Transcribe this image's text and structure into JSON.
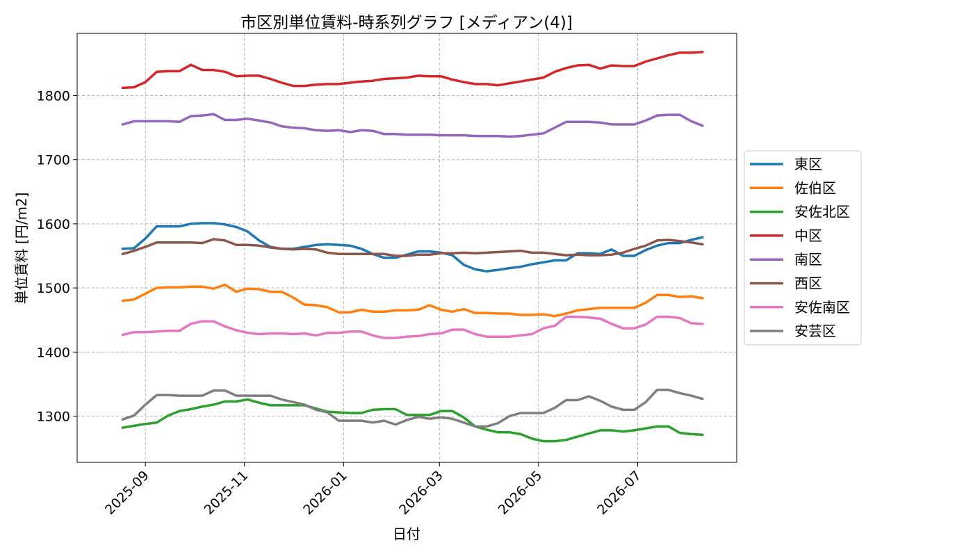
{
  "chart_data": {
    "type": "line",
    "title": "市区別単位賃料-時系列グラフ [メディアン(4)]",
    "xlabel": "日付",
    "ylabel": "単位賃料 [円/m2]",
    "x_tick_labels": [
      "2025-09",
      "2025-11",
      "2026-01",
      "2026-03",
      "2026-05",
      "2026-07"
    ],
    "x_ticks": [
      "2025-09-01",
      "2025-11-01",
      "2026-01-01",
      "2026-03-01",
      "2026-05-01",
      "2026-07-01"
    ],
    "xlim": [
      "2025-07-21",
      "2026-08-31"
    ],
    "y_ticks": [
      1300,
      1400,
      1500,
      1600,
      1700,
      1800
    ],
    "ylim": [
      1228,
      1897
    ],
    "grid": true,
    "legend_position": "center-right-outside",
    "x": [
      "2025-08-18",
      "2025-08-25",
      "2025-09-01",
      "2025-09-08",
      "2025-09-15",
      "2025-09-22",
      "2025-09-29",
      "2025-10-06",
      "2025-10-13",
      "2025-10-20",
      "2025-10-27",
      "2025-11-03",
      "2025-11-10",
      "2025-11-17",
      "2025-11-24",
      "2025-12-01",
      "2025-12-08",
      "2025-12-15",
      "2025-12-22",
      "2025-12-29",
      "2026-01-05",
      "2026-01-12",
      "2026-01-19",
      "2026-01-26",
      "2026-02-02",
      "2026-02-09",
      "2026-02-16",
      "2026-02-23",
      "2026-03-02",
      "2026-03-09",
      "2026-03-16",
      "2026-03-23",
      "2026-03-30",
      "2026-04-06",
      "2026-04-13",
      "2026-04-20",
      "2026-04-27",
      "2026-05-04",
      "2026-05-11",
      "2026-05-18",
      "2026-05-25",
      "2026-06-01",
      "2026-06-08",
      "2026-06-15",
      "2026-06-22",
      "2026-06-29",
      "2026-07-06",
      "2026-07-13",
      "2026-07-20",
      "2026-07-27",
      "2026-08-03",
      "2026-08-10"
    ],
    "series": [
      {
        "name": "東区",
        "color": "#1f77b4",
        "values": [
          1561,
          1562,
          1577,
          1596,
          1596,
          1596,
          1600,
          1601,
          1601,
          1599,
          1595,
          1588,
          1574,
          1564,
          1561,
          1561,
          1564,
          1567,
          1568,
          1567,
          1566,
          1561,
          1553,
          1547,
          1547,
          1552,
          1557,
          1557,
          1555,
          1551,
          1536,
          1529,
          1526,
          1528,
          1531,
          1533,
          1537,
          1540,
          1543,
          1543,
          1554,
          1554,
          1553,
          1560,
          1550,
          1550,
          1559,
          1566,
          1570,
          1570,
          1575,
          1579
        ]
      },
      {
        "name": "佐伯区",
        "color": "#ff7f0e",
        "values": [
          1480,
          1482,
          1491,
          1500,
          1501,
          1501,
          1502,
          1502,
          1499,
          1505,
          1494,
          1499,
          1498,
          1494,
          1494,
          1485,
          1474,
          1473,
          1470,
          1462,
          1462,
          1466,
          1463,
          1463,
          1465,
          1465,
          1466,
          1473,
          1466,
          1463,
          1467,
          1461,
          1461,
          1460,
          1460,
          1458,
          1458,
          1459,
          1456,
          1460,
          1465,
          1467,
          1469,
          1469,
          1469,
          1469,
          1477,
          1489,
          1489,
          1486,
          1487,
          1484
        ]
      },
      {
        "name": "安佐北区",
        "color": "#2ca02c",
        "values": [
          1282,
          1285,
          1288,
          1290,
          1301,
          1308,
          1311,
          1315,
          1318,
          1323,
          1323,
          1326,
          1321,
          1317,
          1317,
          1317,
          1317,
          1312,
          1307,
          1306,
          1305,
          1305,
          1310,
          1311,
          1311,
          1302,
          1302,
          1302,
          1308,
          1308,
          1298,
          1284,
          1279,
          1275,
          1275,
          1272,
          1265,
          1261,
          1261,
          1263,
          1268,
          1273,
          1278,
          1278,
          1276,
          1278,
          1281,
          1284,
          1284,
          1274,
          1272,
          1271
        ]
      },
      {
        "name": "中区",
        "color": "#d62728",
        "values": [
          1812,
          1813,
          1821,
          1837,
          1838,
          1838,
          1848,
          1840,
          1840,
          1837,
          1830,
          1831,
          1831,
          1826,
          1820,
          1815,
          1815,
          1817,
          1818,
          1818,
          1820,
          1822,
          1823,
          1826,
          1827,
          1828,
          1831,
          1830,
          1830,
          1825,
          1821,
          1818,
          1818,
          1816,
          1819,
          1822,
          1825,
          1828,
          1837,
          1843,
          1847,
          1848,
          1842,
          1847,
          1846,
          1846,
          1853,
          1858,
          1863,
          1867,
          1867,
          1868
        ]
      },
      {
        "name": "南区",
        "color": "#9467bd",
        "values": [
          1755,
          1760,
          1760,
          1760,
          1760,
          1759,
          1768,
          1769,
          1771,
          1762,
          1762,
          1764,
          1761,
          1758,
          1752,
          1750,
          1749,
          1746,
          1745,
          1746,
          1743,
          1746,
          1745,
          1740,
          1740,
          1739,
          1739,
          1739,
          1738,
          1738,
          1738,
          1737,
          1737,
          1737,
          1736,
          1737,
          1739,
          1741,
          1750,
          1759,
          1759,
          1759,
          1758,
          1755,
          1755,
          1755,
          1761,
          1769,
          1770,
          1770,
          1760,
          1753
        ]
      },
      {
        "name": "西区",
        "color": "#8c564b",
        "values": [
          1553,
          1558,
          1564,
          1571,
          1571,
          1571,
          1571,
          1570,
          1576,
          1574,
          1567,
          1567,
          1566,
          1563,
          1561,
          1560,
          1561,
          1560,
          1555,
          1553,
          1553,
          1553,
          1553,
          1553,
          1550,
          1550,
          1552,
          1552,
          1554,
          1554,
          1555,
          1554,
          1555,
          1556,
          1557,
          1558,
          1555,
          1555,
          1553,
          1551,
          1552,
          1551,
          1551,
          1552,
          1555,
          1561,
          1566,
          1574,
          1575,
          1573,
          1571,
          1568
        ]
      },
      {
        "name": "安佐南区",
        "color": "#e377c2",
        "values": [
          1427,
          1431,
          1431,
          1432,
          1433,
          1433,
          1444,
          1448,
          1448,
          1440,
          1434,
          1430,
          1428,
          1429,
          1429,
          1428,
          1429,
          1426,
          1430,
          1430,
          1432,
          1432,
          1426,
          1422,
          1422,
          1424,
          1425,
          1428,
          1429,
          1435,
          1435,
          1428,
          1424,
          1424,
          1424,
          1426,
          1428,
          1437,
          1441,
          1455,
          1455,
          1454,
          1452,
          1444,
          1437,
          1437,
          1443,
          1455,
          1455,
          1453,
          1445,
          1444
        ]
      },
      {
        "name": "安芸区",
        "color": "#7f7f7f",
        "values": [
          1295,
          1301,
          1318,
          1333,
          1333,
          1332,
          1332,
          1332,
          1340,
          1340,
          1332,
          1332,
          1332,
          1332,
          1326,
          1322,
          1318,
          1310,
          1306,
          1293,
          1293,
          1293,
          1290,
          1293,
          1287,
          1294,
          1299,
          1296,
          1298,
          1296,
          1290,
          1284,
          1284,
          1289,
          1300,
          1305,
          1305,
          1305,
          1313,
          1325,
          1325,
          1331,
          1324,
          1315,
          1310,
          1310,
          1322,
          1341,
          1341,
          1336,
          1332,
          1327
        ]
      }
    ]
  }
}
